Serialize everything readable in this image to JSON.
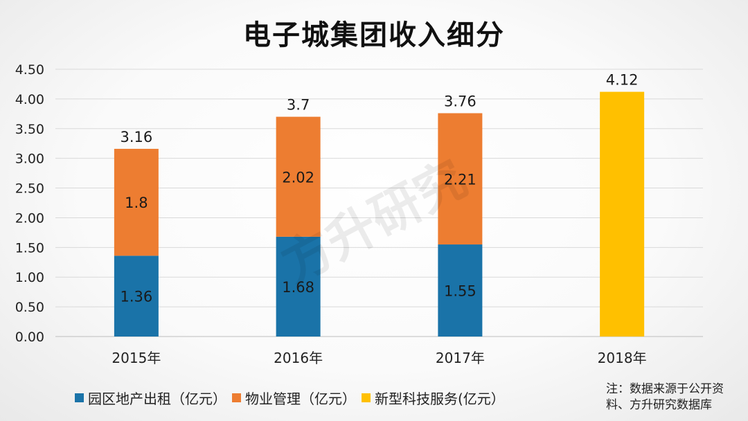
{
  "chart_data": {
    "type": "bar",
    "stacked": true,
    "title": "电子城集团收入细分",
    "categories": [
      "2015年",
      "2016年",
      "2017年",
      "2018年"
    ],
    "ylim": [
      0,
      4.5
    ],
    "yticks": [
      "0.00",
      "0.50",
      "1.00",
      "1.50",
      "2.00",
      "2.50",
      "3.00",
      "3.50",
      "4.00",
      "4.50"
    ],
    "grid": true,
    "legend_position": "bottom",
    "series": [
      {
        "name": "园区地产出租（亿元）",
        "color": "#1a73a8",
        "values": [
          1.36,
          1.68,
          1.55,
          null
        ],
        "labels": [
          "1.36",
          "1.68",
          "1.55",
          ""
        ]
      },
      {
        "name": "物业管理（亿元）",
        "color": "#ed7d31",
        "values": [
          1.8,
          2.02,
          2.21,
          null
        ],
        "labels": [
          "1.8",
          "2.02",
          "2.21",
          ""
        ]
      },
      {
        "name": "新型科技服务(亿元）",
        "color": "#ffc000",
        "values": [
          null,
          null,
          null,
          4.12
        ],
        "labels": [
          "",
          "",
          "",
          ""
        ]
      }
    ],
    "totals": [
      3.16,
      3.7,
      3.76,
      4.12
    ],
    "total_labels": [
      "3.16",
      "3.7",
      "3.76",
      "4.12"
    ]
  },
  "watermark": "方升研究",
  "source_note": {
    "line1": "注：数据来源于公开资",
    "line2": "料、方升研究数据库"
  }
}
